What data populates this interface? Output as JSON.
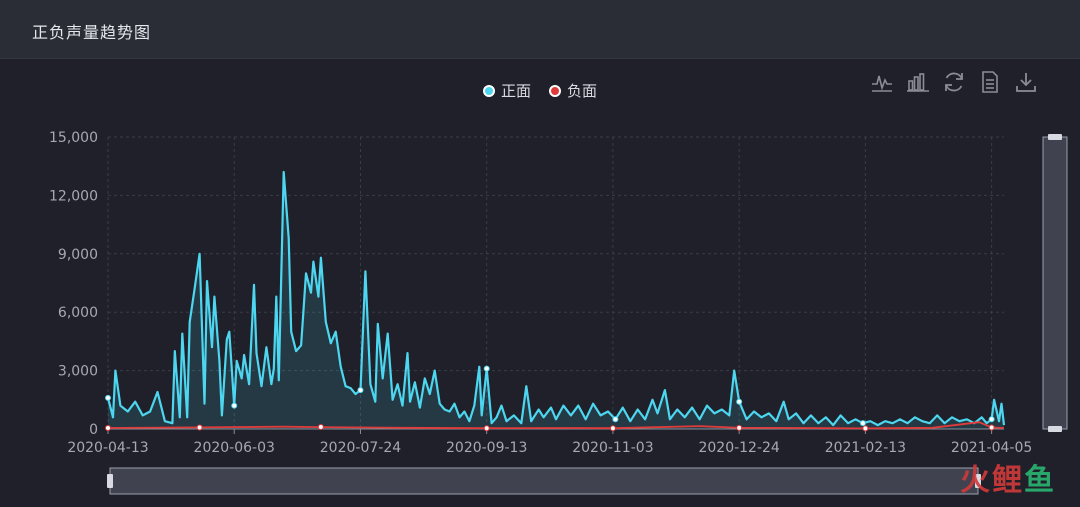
{
  "header": {
    "title": "正负声量趋势图"
  },
  "toolbox": [
    {
      "name": "line-chart-icon"
    },
    {
      "name": "bar-chart-icon"
    },
    {
      "name": "refresh-icon"
    },
    {
      "name": "data-view-icon"
    },
    {
      "name": "download-icon"
    }
  ],
  "watermark": {
    "part1": "火",
    "part2": "鲤",
    "part3": "鱼"
  },
  "colors": {
    "positive": "#4dd6ef",
    "negative": "#e03b3b",
    "background": "#1f2029"
  },
  "chart_data": {
    "type": "line",
    "title": "正负声量趋势图",
    "xlabel": "",
    "ylabel": "",
    "x_start": "2020-04-13",
    "x_end": "2021-04-10",
    "ylim": [
      0,
      15000
    ],
    "yticks": [
      "0",
      "3,000",
      "6,000",
      "9,000",
      "12,000",
      "15,000"
    ],
    "xticks": [
      "2020-04-13",
      "2020-06-03",
      "2020-07-24",
      "2020-09-13",
      "2020-11-03",
      "2020-12-24",
      "2021-02-13",
      "2021-04-05"
    ],
    "grid": true,
    "legend_position": "top-center",
    "series": [
      {
        "name": "正面",
        "color": "#4dd6ef",
        "area": true,
        "points": [
          [
            "2020-04-13",
            1600
          ],
          [
            "2020-04-15",
            600
          ],
          [
            "2020-04-16",
            3000
          ],
          [
            "2020-04-18",
            1200
          ],
          [
            "2020-04-21",
            900
          ],
          [
            "2020-04-24",
            1400
          ],
          [
            "2020-04-27",
            700
          ],
          [
            "2020-04-30",
            900
          ],
          [
            "2020-05-03",
            1900
          ],
          [
            "2020-05-06",
            400
          ],
          [
            "2020-05-09",
            300
          ],
          [
            "2020-05-10",
            4000
          ],
          [
            "2020-05-12",
            600
          ],
          [
            "2020-05-13",
            4900
          ],
          [
            "2020-05-15",
            600
          ],
          [
            "2020-05-16",
            5500
          ],
          [
            "2020-05-18",
            7200
          ],
          [
            "2020-05-20",
            9000
          ],
          [
            "2020-05-22",
            1300
          ],
          [
            "2020-05-23",
            7600
          ],
          [
            "2020-05-25",
            4200
          ],
          [
            "2020-05-26",
            6800
          ],
          [
            "2020-05-28",
            3500
          ],
          [
            "2020-05-29",
            700
          ],
          [
            "2020-05-31",
            4600
          ],
          [
            "2020-06-01",
            5000
          ],
          [
            "2020-06-03",
            1200
          ],
          [
            "2020-06-04",
            3500
          ],
          [
            "2020-06-06",
            2600
          ],
          [
            "2020-06-07",
            3800
          ],
          [
            "2020-06-09",
            2300
          ],
          [
            "2020-06-11",
            7400
          ],
          [
            "2020-06-12",
            3900
          ],
          [
            "2020-06-14",
            2200
          ],
          [
            "2020-06-16",
            4200
          ],
          [
            "2020-06-18",
            2300
          ],
          [
            "2020-06-19",
            3100
          ],
          [
            "2020-06-20",
            6800
          ],
          [
            "2020-06-21",
            2500
          ],
          [
            "2020-06-23",
            13200
          ],
          [
            "2020-06-25",
            9800
          ],
          [
            "2020-06-26",
            5000
          ],
          [
            "2020-06-28",
            4000
          ],
          [
            "2020-06-30",
            4300
          ],
          [
            "2020-07-02",
            8000
          ],
          [
            "2020-07-04",
            7000
          ],
          [
            "2020-07-05",
            8600
          ],
          [
            "2020-07-07",
            6800
          ],
          [
            "2020-07-08",
            8800
          ],
          [
            "2020-07-10",
            5500
          ],
          [
            "2020-07-12",
            4400
          ],
          [
            "2020-07-14",
            5000
          ],
          [
            "2020-07-16",
            3200
          ],
          [
            "2020-07-18",
            2200
          ],
          [
            "2020-07-20",
            2100
          ],
          [
            "2020-07-22",
            1800
          ],
          [
            "2020-07-24",
            2000
          ],
          [
            "2020-07-26",
            8100
          ],
          [
            "2020-07-28",
            2300
          ],
          [
            "2020-07-30",
            1400
          ],
          [
            "2020-07-31",
            5400
          ],
          [
            "2020-08-02",
            2600
          ],
          [
            "2020-08-04",
            4900
          ],
          [
            "2020-08-06",
            1500
          ],
          [
            "2020-08-08",
            2300
          ],
          [
            "2020-08-10",
            1200
          ],
          [
            "2020-08-12",
            3900
          ],
          [
            "2020-08-13",
            1400
          ],
          [
            "2020-08-15",
            2400
          ],
          [
            "2020-08-17",
            1100
          ],
          [
            "2020-08-19",
            2600
          ],
          [
            "2020-08-21",
            1800
          ],
          [
            "2020-08-23",
            3000
          ],
          [
            "2020-08-25",
            1300
          ],
          [
            "2020-08-27",
            1000
          ],
          [
            "2020-08-29",
            900
          ],
          [
            "2020-08-31",
            1300
          ],
          [
            "2020-09-02",
            600
          ],
          [
            "2020-09-04",
            900
          ],
          [
            "2020-09-06",
            400
          ],
          [
            "2020-09-08",
            1200
          ],
          [
            "2020-09-10",
            3200
          ],
          [
            "2020-09-11",
            700
          ],
          [
            "2020-09-13",
            3100
          ],
          [
            "2020-09-15",
            300
          ],
          [
            "2020-09-17",
            600
          ],
          [
            "2020-09-19",
            1200
          ],
          [
            "2020-09-21",
            400
          ],
          [
            "2020-09-24",
            700
          ],
          [
            "2020-09-27",
            300
          ],
          [
            "2020-09-29",
            2200
          ],
          [
            "2020-10-01",
            400
          ],
          [
            "2020-10-04",
            1000
          ],
          [
            "2020-10-06",
            600
          ],
          [
            "2020-10-09",
            1100
          ],
          [
            "2020-10-11",
            500
          ],
          [
            "2020-10-14",
            1200
          ],
          [
            "2020-10-17",
            700
          ],
          [
            "2020-10-20",
            1200
          ],
          [
            "2020-10-23",
            500
          ],
          [
            "2020-10-26",
            1300
          ],
          [
            "2020-10-29",
            700
          ],
          [
            "2020-11-01",
            900
          ],
          [
            "2020-11-04",
            500
          ],
          [
            "2020-11-07",
            1100
          ],
          [
            "2020-11-10",
            400
          ],
          [
            "2020-11-13",
            1000
          ],
          [
            "2020-11-16",
            500
          ],
          [
            "2020-11-19",
            1500
          ],
          [
            "2020-11-21",
            800
          ],
          [
            "2020-11-24",
            2000
          ],
          [
            "2020-11-26",
            500
          ],
          [
            "2020-11-29",
            1000
          ],
          [
            "2020-12-02",
            600
          ],
          [
            "2020-12-05",
            1100
          ],
          [
            "2020-12-08",
            500
          ],
          [
            "2020-12-11",
            1200
          ],
          [
            "2020-12-14",
            800
          ],
          [
            "2020-12-17",
            1000
          ],
          [
            "2020-12-20",
            700
          ],
          [
            "2020-12-22",
            3000
          ],
          [
            "2020-12-24",
            1400
          ],
          [
            "2020-12-27",
            500
          ],
          [
            "2020-12-30",
            900
          ],
          [
            "2021-01-02",
            600
          ],
          [
            "2021-01-05",
            800
          ],
          [
            "2021-01-08",
            400
          ],
          [
            "2021-01-11",
            1400
          ],
          [
            "2021-01-13",
            500
          ],
          [
            "2021-01-16",
            800
          ],
          [
            "2021-01-19",
            300
          ],
          [
            "2021-01-22",
            700
          ],
          [
            "2021-01-25",
            300
          ],
          [
            "2021-01-28",
            600
          ],
          [
            "2021-01-31",
            200
          ],
          [
            "2021-02-03",
            700
          ],
          [
            "2021-02-06",
            300
          ],
          [
            "2021-02-09",
            500
          ],
          [
            "2021-02-12",
            300
          ],
          [
            "2021-02-15",
            400
          ],
          [
            "2021-02-18",
            200
          ],
          [
            "2021-02-21",
            400
          ],
          [
            "2021-02-24",
            300
          ],
          [
            "2021-02-27",
            500
          ],
          [
            "2021-03-02",
            300
          ],
          [
            "2021-03-05",
            600
          ],
          [
            "2021-03-08",
            400
          ],
          [
            "2021-03-11",
            300
          ],
          [
            "2021-03-14",
            700
          ],
          [
            "2021-03-17",
            300
          ],
          [
            "2021-03-20",
            600
          ],
          [
            "2021-03-23",
            400
          ],
          [
            "2021-03-26",
            500
          ],
          [
            "2021-03-29",
            300
          ],
          [
            "2021-04-01",
            600
          ],
          [
            "2021-04-03",
            300
          ],
          [
            "2021-04-05",
            500
          ],
          [
            "2021-04-06",
            1500
          ],
          [
            "2021-04-08",
            400
          ],
          [
            "2021-04-09",
            1300
          ],
          [
            "2021-04-10",
            200
          ]
        ]
      },
      {
        "name": "负面",
        "color": "#e03b3b",
        "area": false,
        "points": [
          [
            "2020-04-13",
            50
          ],
          [
            "2020-05-20",
            80
          ],
          [
            "2020-06-23",
            120
          ],
          [
            "2020-07-08",
            100
          ],
          [
            "2020-08-10",
            60
          ],
          [
            "2020-09-13",
            40
          ],
          [
            "2020-10-15",
            50
          ],
          [
            "2020-11-03",
            40
          ],
          [
            "2020-12-08",
            150
          ],
          [
            "2020-12-24",
            60
          ],
          [
            "2021-01-20",
            50
          ],
          [
            "2021-02-13",
            30
          ],
          [
            "2021-03-12",
            60
          ],
          [
            "2021-03-31",
            350
          ],
          [
            "2021-04-05",
            80
          ],
          [
            "2021-04-10",
            50
          ]
        ]
      }
    ]
  }
}
